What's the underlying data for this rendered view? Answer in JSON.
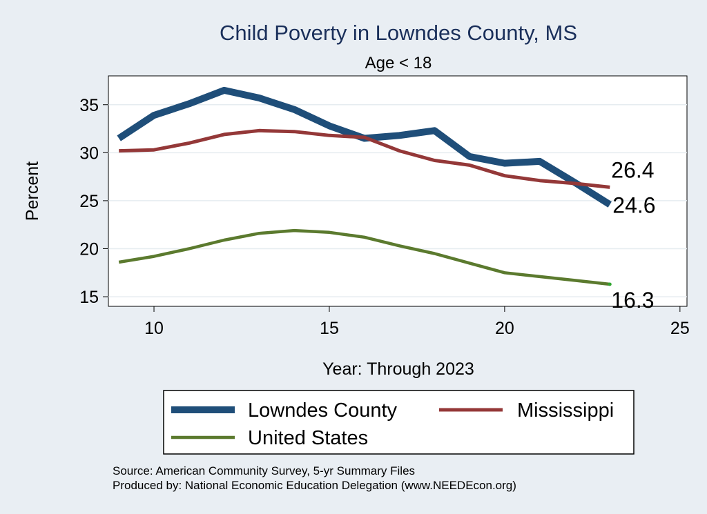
{
  "chart_data": {
    "type": "line",
    "title": "Child Poverty in Lowndes County, MS",
    "subtitle": "Age < 18",
    "xlabel": "Year: Through 2023",
    "ylabel": "Percent",
    "xlim": [
      8.7,
      25.2
    ],
    "ylim": [
      14.0,
      38.0
    ],
    "xticks": [
      10,
      15,
      20,
      25
    ],
    "yticks": [
      15,
      20,
      25,
      30,
      35
    ],
    "grid": true,
    "x": [
      9,
      10,
      11,
      12,
      13,
      14,
      15,
      16,
      17,
      18,
      19,
      20,
      21,
      22,
      23
    ],
    "series": [
      {
        "name": "Lowndes County",
        "color": "#1f4e79",
        "values": [
          31.5,
          33.9,
          35.1,
          36.5,
          35.7,
          34.5,
          32.8,
          31.5,
          31.8,
          32.3,
          29.6,
          28.9,
          29.1,
          26.9,
          24.6
        ],
        "end_label": "24.6"
      },
      {
        "name": "Mississippi",
        "color": "#943838",
        "values": [
          30.2,
          30.3,
          31.0,
          31.9,
          32.3,
          32.2,
          31.8,
          31.6,
          30.2,
          29.2,
          28.7,
          27.6,
          27.1,
          26.8,
          26.4
        ],
        "end_label": "26.4"
      },
      {
        "name": "United States",
        "color": "#5b7a2e",
        "values": [
          18.6,
          19.2,
          20.0,
          20.9,
          21.6,
          21.9,
          21.7,
          21.2,
          20.3,
          19.5,
          18.5,
          17.5,
          17.1,
          16.7,
          16.3
        ],
        "end_label": "16.3"
      }
    ],
    "legend": {
      "position": "bottom",
      "items": [
        "Lowndes County",
        "Mississippi",
        "United States"
      ]
    },
    "source_lines": [
      "Source: American Community Survey, 5-yr Summary Files",
      "Produced by: National Economic Education Delegation (www.NEEDEcon.org)"
    ]
  }
}
